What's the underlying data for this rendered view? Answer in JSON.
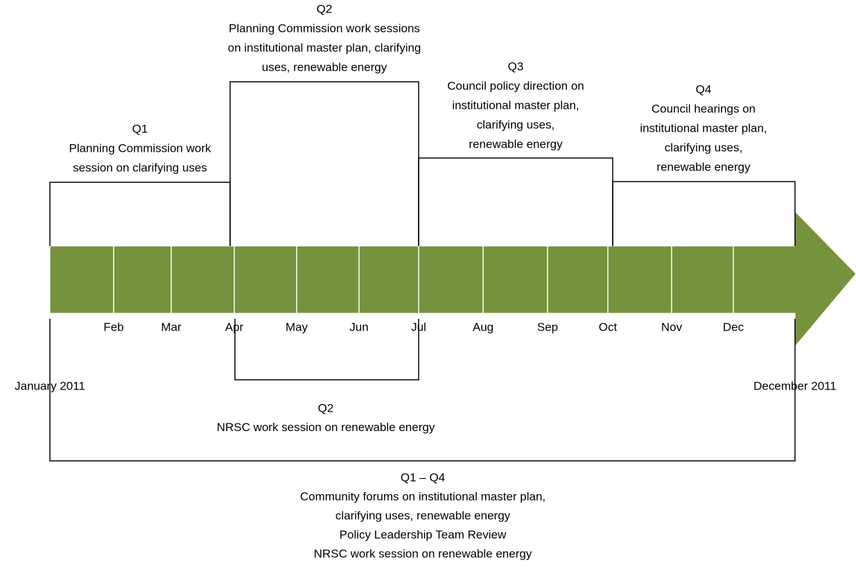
{
  "timeline": {
    "start_label": "January 2011",
    "end_label": "December 2011",
    "months": [
      "Feb",
      "Mar",
      "Apr",
      "May",
      "Jun",
      "Jul",
      "Aug",
      "Sep",
      "Oct",
      "Nov",
      "Dec"
    ]
  },
  "phases_above": [
    {
      "lines": [
        "Q1",
        "Planning Commission work",
        "session on clarifying uses"
      ]
    },
    {
      "lines": [
        "Q2",
        "Planning Commission work sessions",
        "on institutional master plan, clarifying",
        "uses, renewable energy"
      ]
    },
    {
      "lines": [
        "Q3",
        "Council policy direction on",
        "institutional master plan,",
        "clarifying uses,",
        "renewable energy"
      ]
    },
    {
      "lines": [
        "Q4",
        "Council hearings on",
        "institutional master plan,",
        "clarifying uses,",
        "renewable energy"
      ]
    }
  ],
  "phases_below": [
    {
      "lines": [
        "Q2",
        "NRSC work session on renewable energy"
      ]
    },
    {
      "lines": [
        "Q1 – Q4",
        "Community forums on institutional master plan,",
        "clarifying uses, renewable energy",
        "Policy Leadership Team Review",
        "NRSC work session on renewable energy"
      ]
    }
  ]
}
